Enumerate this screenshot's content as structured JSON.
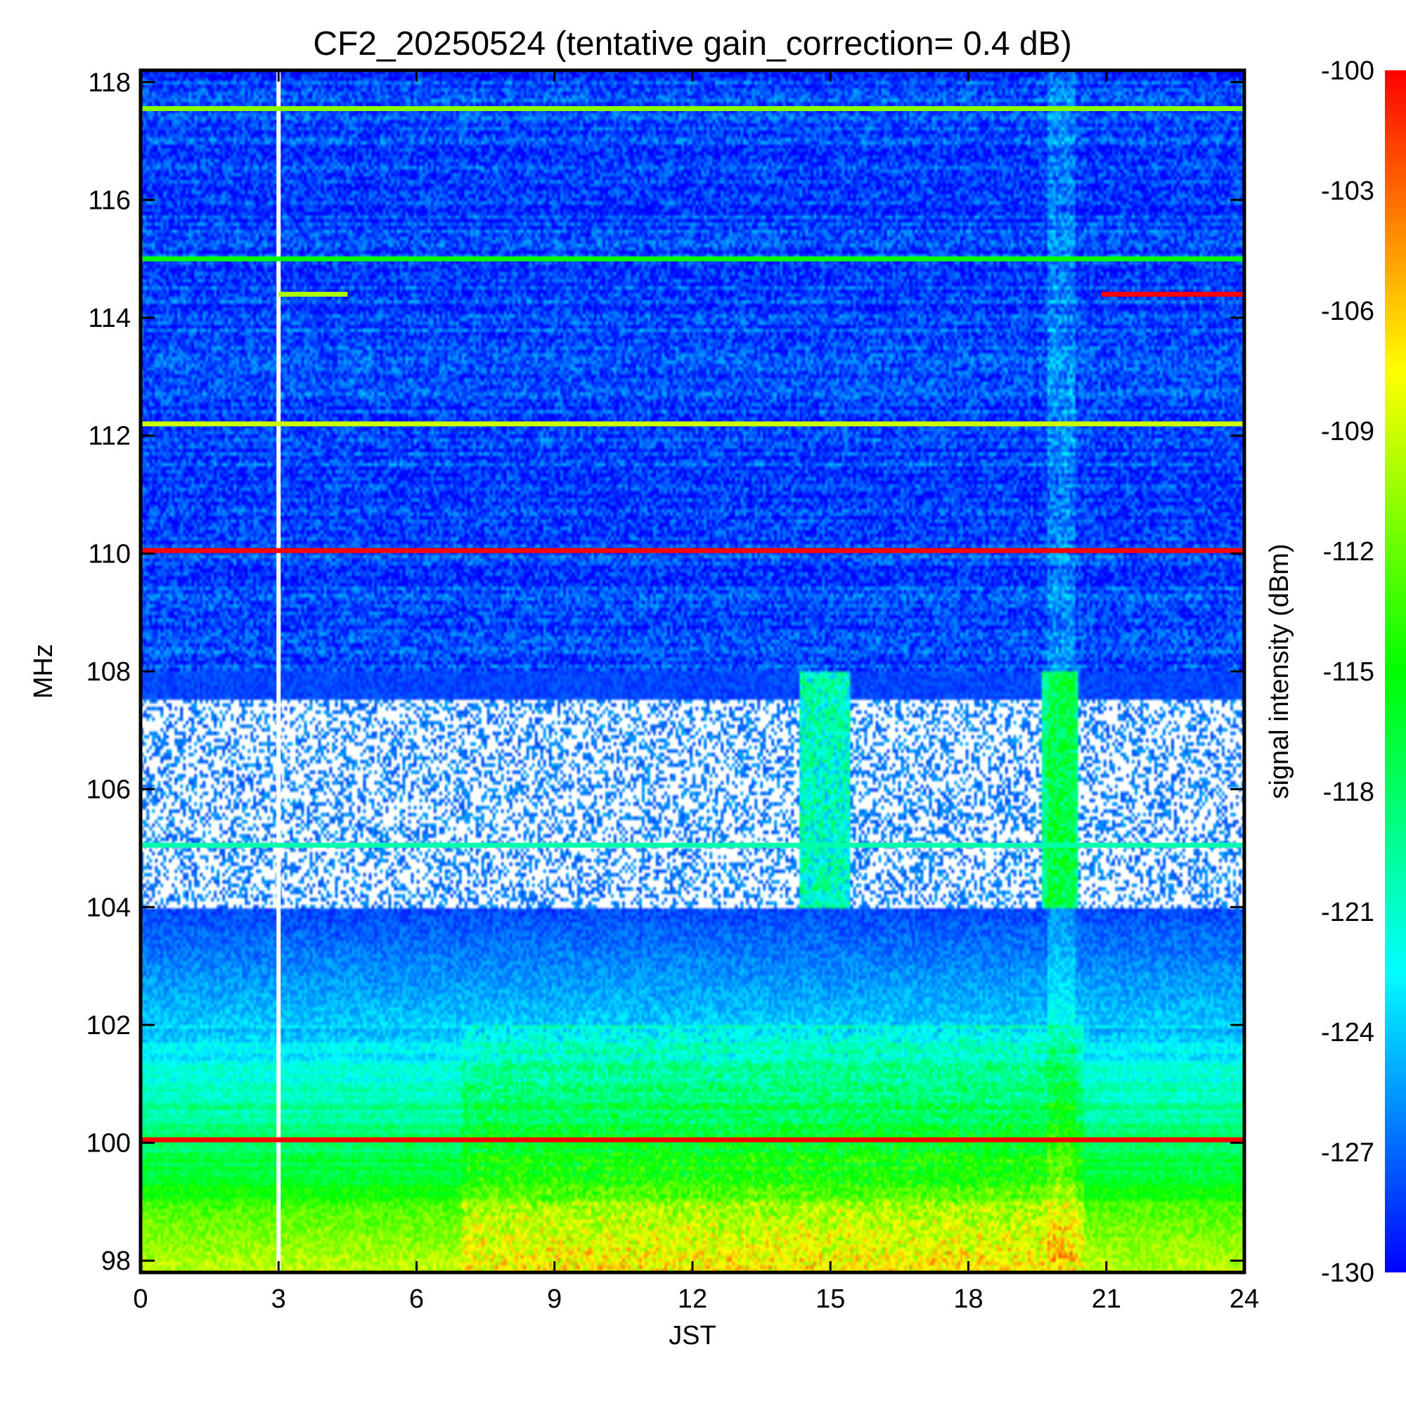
{
  "chart_data": {
    "type": "heatmap",
    "title": "CF2_20250524 (tentative gain_correction=  0.4 dB)",
    "xlabel": "JST",
    "ylabel": "MHz",
    "colorbar_label": "signal intensity (dBm)",
    "xlim": [
      0,
      24
    ],
    "ylim": [
      97.8,
      118.2
    ],
    "x_ticks": [
      "0",
      "3",
      "6",
      "9",
      "12",
      "15",
      "18",
      "21",
      "24"
    ],
    "x_tick_values": [
      0,
      3,
      6,
      9,
      12,
      15,
      18,
      21,
      24
    ],
    "y_ticks": [
      "98",
      "100",
      "102",
      "104",
      "106",
      "108",
      "110",
      "112",
      "114",
      "116",
      "118"
    ],
    "y_tick_values": [
      98,
      100,
      102,
      104,
      106,
      108,
      110,
      112,
      114,
      116,
      118
    ],
    "colorbar_range": [
      -130,
      -100
    ],
    "colorbar_ticks": [
      "-100",
      "-103",
      "-106",
      "-109",
      "-112",
      "-115",
      "-118",
      "-121",
      "-124",
      "-127",
      "-130"
    ],
    "colorbar_tick_values": [
      -100,
      -103,
      -106,
      -109,
      -112,
      -115,
      -118,
      -121,
      -124,
      -127,
      -130
    ],
    "colormap": [
      "#0000ff",
      "#0080ff",
      "#00ffff",
      "#00ff80",
      "#00ff00",
      "#80ff00",
      "#ffff00",
      "#ff8000",
      "#ff0000"
    ],
    "data_gap_jst": 3.0,
    "strong_lines": [
      {
        "freq_mhz": 117.55,
        "jst_range": [
          0,
          24
        ],
        "dbm": -111
      },
      {
        "freq_mhz": 115.0,
        "jst_range": [
          0,
          24
        ],
        "dbm": -115
      },
      {
        "freq_mhz": 114.4,
        "jst_range": [
          3,
          4.5
        ],
        "dbm": -110
      },
      {
        "freq_mhz": 114.4,
        "jst_range": [
          20.9,
          24
        ],
        "dbm": -100
      },
      {
        "freq_mhz": 112.2,
        "jst_range": [
          0,
          24
        ],
        "dbm": -109
      },
      {
        "freq_mhz": 110.05,
        "jst_range": [
          0,
          24
        ],
        "dbm": -100
      },
      {
        "freq_mhz": 105.05,
        "jst_range": [
          0,
          24
        ],
        "dbm": -120
      },
      {
        "freq_mhz": 100.05,
        "jst_range": [
          0,
          24
        ],
        "dbm": -100
      }
    ],
    "grid": false
  }
}
